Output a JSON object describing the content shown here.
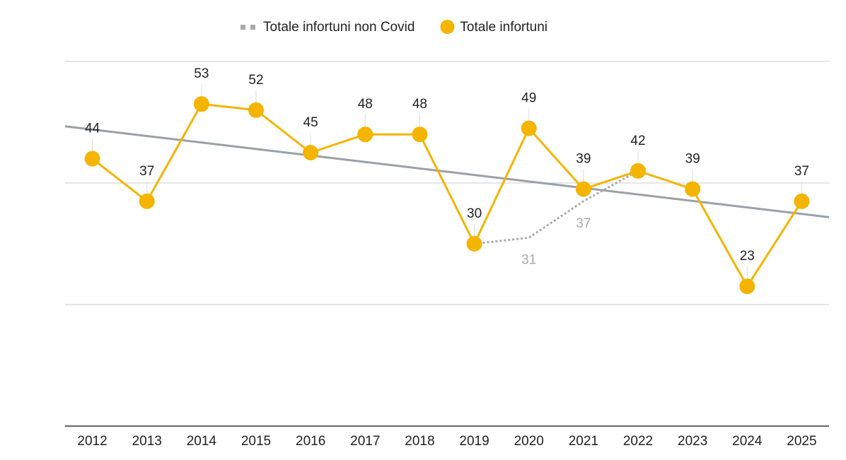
{
  "chart_data": {
    "type": "line",
    "categories": [
      "2012",
      "2013",
      "2014",
      "2015",
      "2016",
      "2017",
      "2018",
      "2019",
      "2020",
      "2021",
      "2022",
      "2023",
      "2024",
      "2025"
    ],
    "series": [
      {
        "name": "Totale infortuni non Covid",
        "color": "#aaaaaa",
        "dashed": true,
        "values": [
          null,
          null,
          null,
          null,
          null,
          null,
          null,
          30,
          31,
          37,
          42,
          null,
          null,
          null
        ]
      },
      {
        "name": "Totale infortuni",
        "color": "#f4b400",
        "values": [
          44,
          37,
          53,
          52,
          45,
          48,
          48,
          30,
          49,
          39,
          42,
          39,
          23,
          37
        ]
      }
    ],
    "trendline": {
      "series": 1,
      "color": "#9aa0a6"
    },
    "ylim": [
      0,
      60
    ],
    "yticks": [
      0,
      20,
      40,
      60
    ],
    "grid": true
  }
}
